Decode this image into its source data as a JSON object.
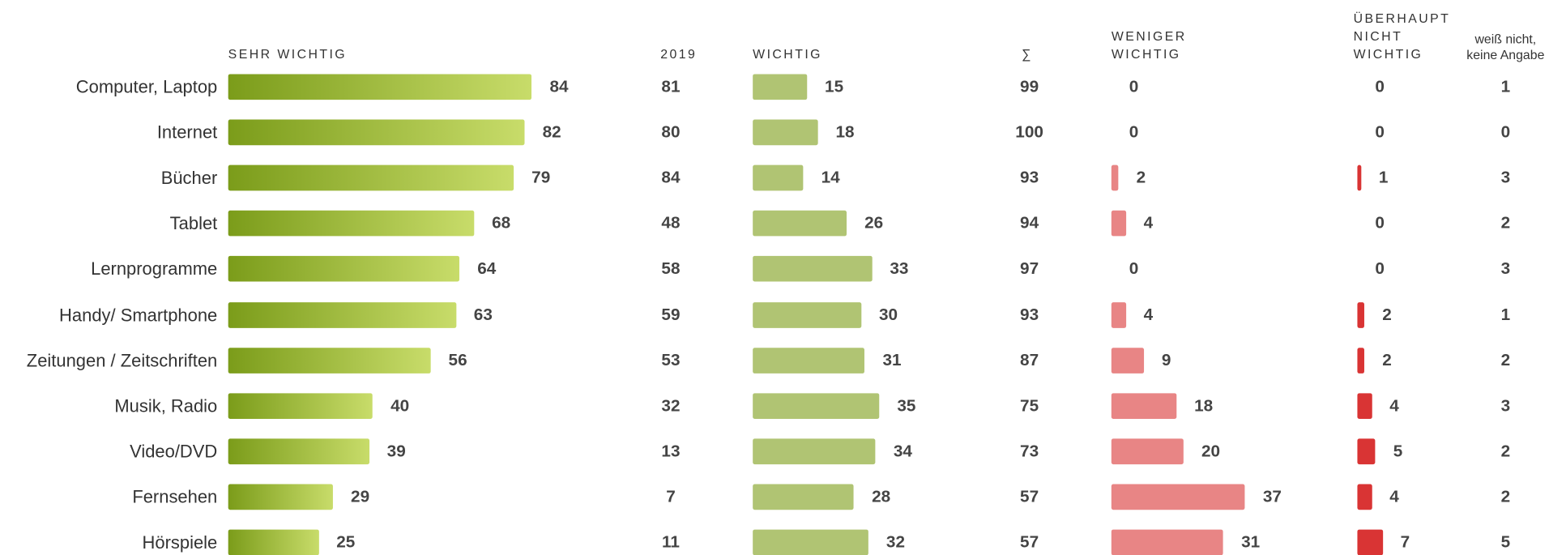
{
  "chart_data": {
    "type": "bar",
    "categories": [
      "Computer, Laptop",
      "Internet",
      "Bücher",
      "Tablet",
      "Lernprogramme",
      "Handy/ Smartphone",
      "Zeitungen / Zeitschriften",
      "Musik, Radio",
      "Video/DVD",
      "Fernsehen",
      "Hörspiele"
    ],
    "series": [
      {
        "name": "SEHR WICHTIG",
        "color": "#7b9c1a",
        "values": [
          84,
          82,
          79,
          68,
          64,
          63,
          56,
          40,
          39,
          29,
          25
        ]
      },
      {
        "name": "2019",
        "values": [
          81,
          80,
          84,
          48,
          58,
          59,
          53,
          32,
          13,
          7,
          11
        ]
      },
      {
        "name": "WICHTIG",
        "color": "#b0c473",
        "values": [
          15,
          18,
          14,
          26,
          33,
          30,
          31,
          35,
          34,
          28,
          32
        ]
      },
      {
        "name": "∑",
        "values": [
          99,
          100,
          93,
          94,
          97,
          93,
          87,
          75,
          73,
          57,
          57
        ]
      },
      {
        "name": "WENIGER WICHTIG",
        "color": "#e88585",
        "values": [
          0,
          0,
          2,
          4,
          0,
          4,
          9,
          18,
          20,
          37,
          31
        ]
      },
      {
        "name": "ÜBERHAUPT NICHT WICHTIG",
        "color": "#d93434",
        "values": [
          0,
          0,
          1,
          0,
          0,
          2,
          2,
          4,
          5,
          4,
          7
        ]
      },
      {
        "name": "weiß nicht, keine Angabe",
        "values": [
          1,
          0,
          3,
          2,
          3,
          1,
          2,
          3,
          2,
          2,
          5
        ]
      }
    ]
  }
}
